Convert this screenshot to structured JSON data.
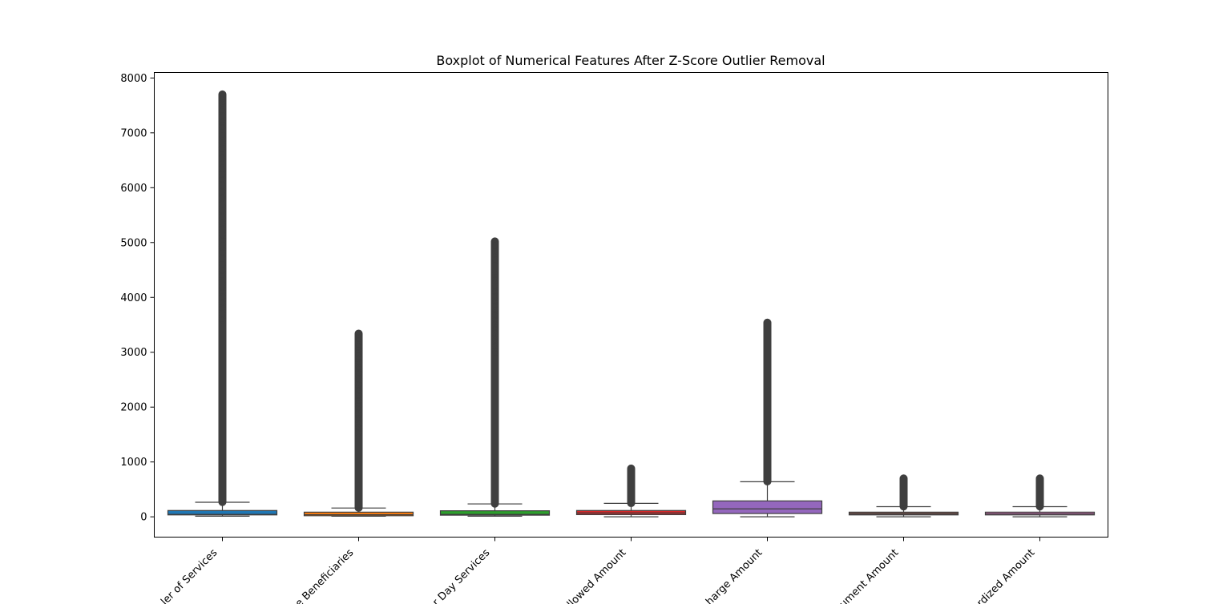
{
  "chart_data": {
    "type": "box",
    "title": "Boxplot of Numerical Features After Z-Score Outlier Removal",
    "xlabel": "",
    "ylabel": "",
    "ylim": [
      -370,
      8100
    ],
    "yticks": [
      0,
      1000,
      2000,
      3000,
      4000,
      5000,
      6000,
      7000,
      8000
    ],
    "grid": false,
    "categories": [
      "ler of Services",
      "e Beneficiaries",
      "r Day Services",
      "llowed Amount",
      "harge Amount",
      "ument Amount",
      "rdized Amount"
    ],
    "boxes": [
      {
        "color": "#1f77b4",
        "whisker_low": 11,
        "q1": 35,
        "median": 45,
        "q3": 115,
        "whisker_high": 265,
        "outlier_from": 270,
        "outlier_max": 7700,
        "outliers": [
          7690,
          7620,
          7560,
          7400,
          7300,
          7200,
          7130,
          6960,
          6820,
          6720,
          6540,
          6350,
          6260,
          6150,
          6050,
          5920,
          5810,
          5700,
          5580,
          5480,
          5360,
          5260,
          5150,
          5050,
          4930,
          4830,
          4720,
          4610,
          4500,
          4400,
          4300,
          4200,
          4100,
          4000,
          3900,
          3800,
          3700,
          3600
        ]
      },
      {
        "color": "#ff7f0e",
        "whisker_low": 11,
        "q1": 20,
        "median": 40,
        "q3": 85,
        "whisker_high": 160,
        "outlier_from": 165,
        "outlier_max": 3340,
        "outliers": [
          3340,
          3260,
          3100,
          3030,
          2980,
          2900,
          2810,
          2700,
          2620,
          2520,
          2410,
          2340,
          2260,
          2200,
          2110,
          2020,
          1960,
          1870,
          1780,
          1700,
          1620,
          1540
        ]
      },
      {
        "color": "#2ca02c",
        "whisker_low": 11,
        "q1": 30,
        "median": 45,
        "q3": 110,
        "whisker_high": 235,
        "outlier_from": 240,
        "outlier_max": 5020,
        "outliers": [
          5020,
          4960,
          4850,
          4790,
          4680,
          4420,
          4360,
          4300,
          4200,
          4120,
          4000,
          3930,
          3850,
          3760,
          3680,
          3600,
          3520,
          3440,
          3370,
          3300,
          3230,
          3160,
          3080,
          3000
        ]
      },
      {
        "color": "#d62728",
        "whisker_low": 1,
        "q1": 40,
        "median": 70,
        "q3": 115,
        "whisker_high": 245,
        "outlier_from": 250,
        "outlier_max": 880,
        "outliers": []
      },
      {
        "color": "#9467bd",
        "whisker_low": 1,
        "q1": 60,
        "median": 145,
        "q3": 290,
        "whisker_high": 640,
        "outlier_from": 645,
        "outlier_max": 3540,
        "outliers": []
      },
      {
        "color": "#8c564b",
        "whisker_low": 1,
        "q1": 35,
        "median": 55,
        "q3": 85,
        "whisker_high": 185,
        "outlier_from": 190,
        "outlier_max": 700,
        "outliers": []
      },
      {
        "color": "#e377c2",
        "whisker_low": 1,
        "q1": 35,
        "median": 55,
        "q3": 85,
        "whisker_high": 185,
        "outlier_from": 190,
        "outlier_max": 700,
        "outliers": []
      }
    ]
  }
}
